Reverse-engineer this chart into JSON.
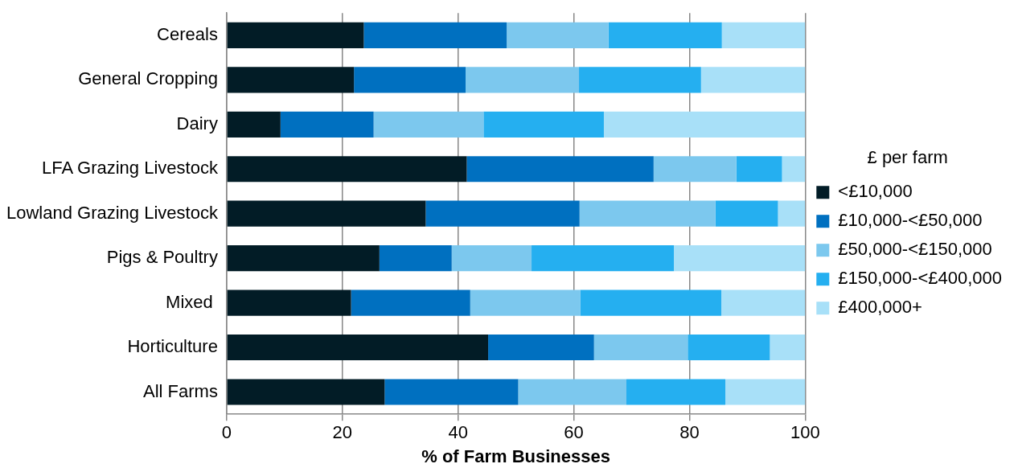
{
  "chart_data": {
    "type": "bar",
    "orientation": "horizontal",
    "stacked": true,
    "xlabel": "% of Farm Businesses",
    "legend_title": "£ per farm",
    "legend": "right",
    "grid": "x",
    "categories": [
      "Cereals",
      "General Cropping",
      "Dairy",
      "LFA Grazing Livestock",
      "Lowland Grazing Livestock",
      "Pigs & Poultry",
      "Mixed ",
      "Horticulture",
      "All Farms"
    ],
    "xlim": [
      0,
      100
    ],
    "xticks": [
      0,
      20,
      40,
      60,
      80,
      100
    ],
    "series": [
      {
        "name": "<£10,000",
        "color": "#021c26",
        "values": [
          23.7,
          22.0,
          9.3,
          41.5,
          34.4,
          26.4,
          21.5,
          45.2,
          27.3
        ]
      },
      {
        "name": "£10,000-<£50,000",
        "color": "#0070c0",
        "values": [
          24.7,
          19.3,
          16.1,
          32.3,
          26.6,
          12.5,
          20.6,
          18.3,
          23.1
        ]
      },
      {
        "name": "£50,000-<£150,000",
        "color": "#7cc8ee",
        "values": [
          17.6,
          19.6,
          19.0,
          14.3,
          23.5,
          13.8,
          19.0,
          16.2,
          18.7
        ]
      },
      {
        "name": "£150,000-<£400,000",
        "color": "#25aff0",
        "values": [
          19.6,
          21.1,
          20.8,
          7.9,
          10.8,
          24.6,
          24.4,
          14.2,
          17.1
        ]
      },
      {
        "name": "£400,000+",
        "color": "#a8e0f8",
        "values": [
          14.4,
          18.0,
          34.8,
          4.0,
          4.7,
          22.7,
          14.5,
          6.1,
          13.8
        ]
      }
    ]
  }
}
